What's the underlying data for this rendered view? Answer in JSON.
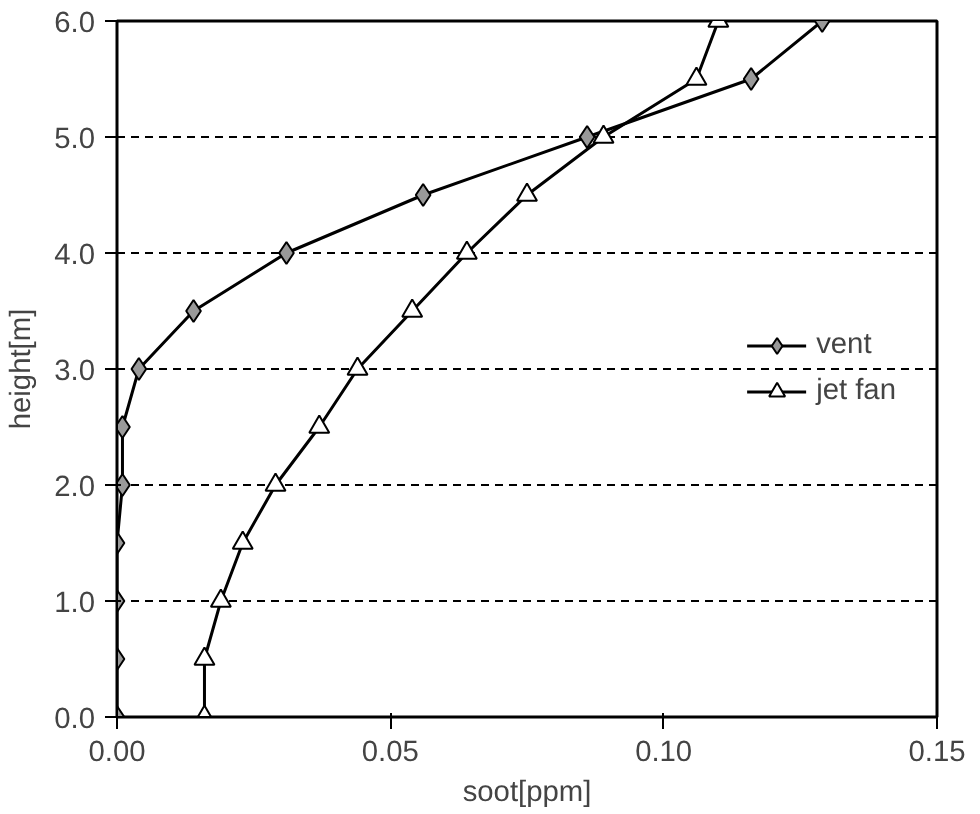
{
  "chart_data": {
    "type": "line",
    "xlabel": "soot[ppm]",
    "ylabel": "height[m]",
    "xlim": [
      0,
      0.15
    ],
    "xticks": [
      {
        "value": 0,
        "label": "0.00"
      },
      {
        "value": 0.05,
        "label": "0.05"
      },
      {
        "value": 0.1,
        "label": "0.10"
      },
      {
        "value": 0.15,
        "label": "0.15"
      }
    ],
    "ylim": [
      0,
      6
    ],
    "yticks": [
      {
        "value": 0,
        "label": "0.0"
      },
      {
        "value": 1,
        "label": "1.0"
      },
      {
        "value": 2,
        "label": "2.0"
      },
      {
        "value": 3,
        "label": "3.0"
      },
      {
        "value": 4,
        "label": "4.0"
      },
      {
        "value": 5,
        "label": "5.0"
      },
      {
        "value": 6,
        "label": "6.0"
      }
    ],
    "grid": "y",
    "legend": "right",
    "series": [
      {
        "name": "vent",
        "color": "#000000",
        "marker": "diamond",
        "x": [
          0,
          0,
          0,
          0,
          0.001,
          0.001,
          0.004,
          0.014,
          0.031,
          0.056,
          0.086,
          0.116,
          0.129
        ],
        "values": [
          0,
          0.5,
          1,
          1.5,
          2,
          2.5,
          3,
          3.5,
          4,
          4.5,
          5,
          5.5,
          6
        ]
      },
      {
        "name": "jet fan",
        "color": "#000000",
        "marker": "triangle",
        "x": [
          0.016,
          0.016,
          0.019,
          0.023,
          0.029,
          0.037,
          0.044,
          0.054,
          0.064,
          0.075,
          0.089,
          0.106,
          0.11
        ],
        "values": [
          0,
          0.5,
          1,
          1.5,
          2,
          2.5,
          3,
          3.5,
          4,
          4.5,
          5,
          5.5,
          6
        ]
      }
    ]
  }
}
